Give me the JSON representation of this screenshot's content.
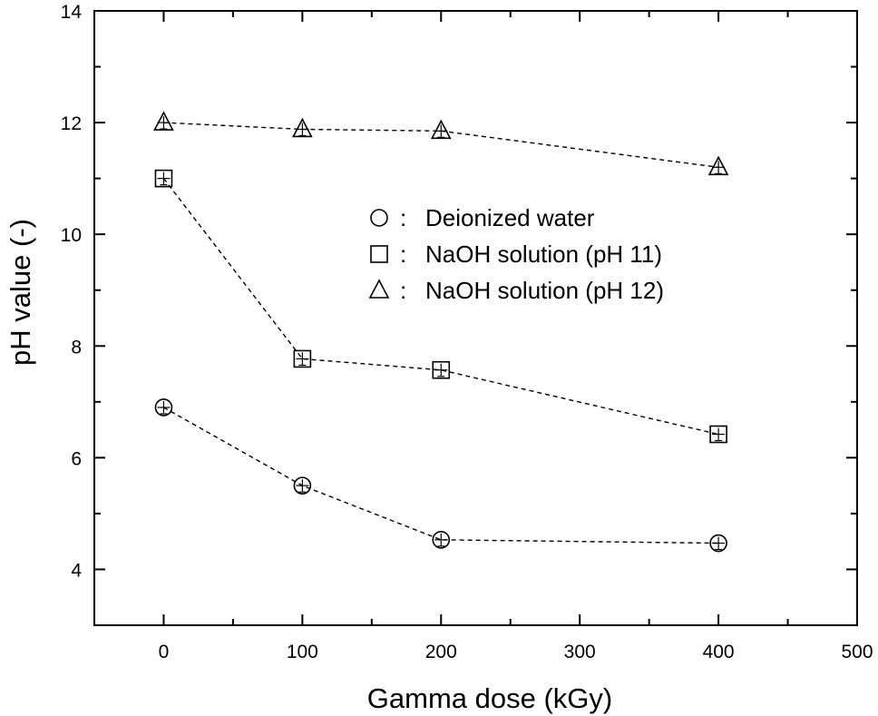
{
  "chart_data": {
    "type": "line",
    "xlabel": "Gamma dose (kGy)",
    "ylabel": "pH value (-)",
    "xlim": [
      -50,
      500
    ],
    "ylim": [
      3,
      14
    ],
    "xticks": [
      0,
      100,
      200,
      300,
      400,
      500
    ],
    "yticks": [
      4,
      6,
      8,
      10,
      12,
      14
    ],
    "x_minor_ticks": [
      -50,
      50,
      150,
      250,
      350,
      450
    ],
    "y_minor_ticks": [
      3,
      5,
      7,
      9,
      11,
      13
    ],
    "grid": false,
    "legend_position": "center-right",
    "line_style": "dashed",
    "line_color": "#000000",
    "x": [
      0,
      100,
      200,
      400
    ],
    "series": [
      {
        "name": "Deionized water",
        "marker": "circle",
        "values": [
          6.9,
          5.5,
          4.53,
          4.47
        ]
      },
      {
        "name": "NaOH solution (pH 11)",
        "marker": "square",
        "values": [
          11.0,
          7.77,
          7.57,
          6.42
        ]
      },
      {
        "name": "NaOH solution (pH 12)",
        "marker": "triangle",
        "values": [
          12.0,
          11.88,
          11.85,
          11.2
        ]
      }
    ]
  }
}
